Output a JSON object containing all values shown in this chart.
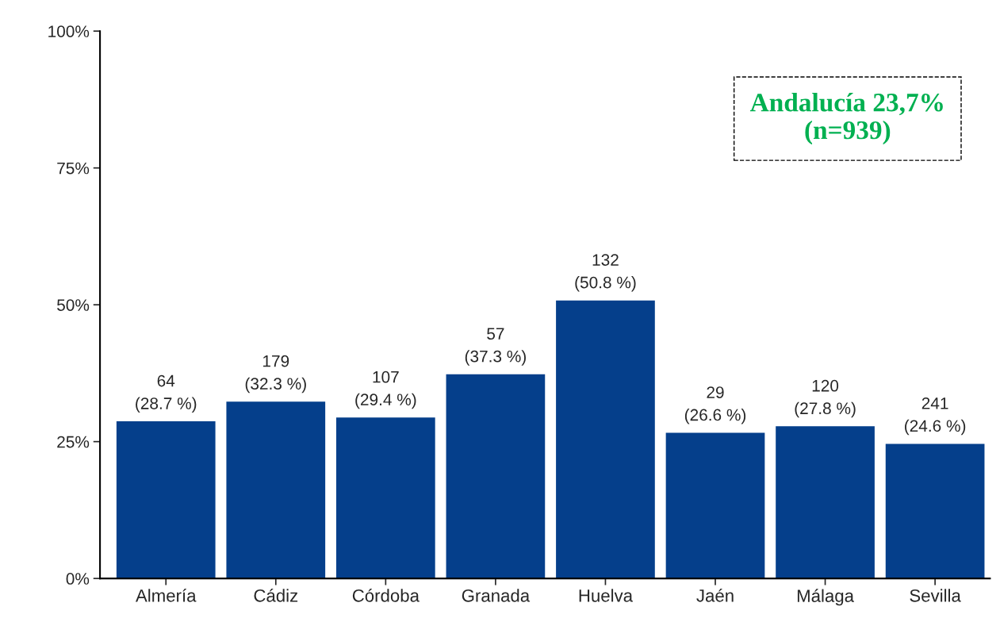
{
  "chart_data": {
    "type": "bar",
    "categories": [
      "Almería",
      "Cádiz",
      "Córdoba",
      "Granada",
      "Huelva",
      "Jaén",
      "Málaga",
      "Sevilla"
    ],
    "values": [
      28.7,
      32.3,
      29.4,
      37.3,
      50.8,
      26.6,
      27.8,
      24.6
    ],
    "value_labels": [
      "64\n(28.7 %)",
      "179\n(32.3 %)",
      "107\n(29.4 %)",
      "57\n(37.3 %)",
      "132\n(50.8 %)",
      "29\n(26.6 %)",
      "120\n(27.8 %)",
      "241\n(24.6 %)"
    ],
    "color": "#053f8b",
    "ylim": [
      0,
      100
    ],
    "yticks": [
      {
        "value": 0,
        "label": "0%"
      },
      {
        "value": 25,
        "label": "25%"
      },
      {
        "value": 50,
        "label": "50%"
      },
      {
        "value": 75,
        "label": "75%"
      },
      {
        "value": 100,
        "label": "100%"
      }
    ],
    "grid": false,
    "annotations": [
      "Andalucía 23,7%\n(n=939)"
    ]
  }
}
